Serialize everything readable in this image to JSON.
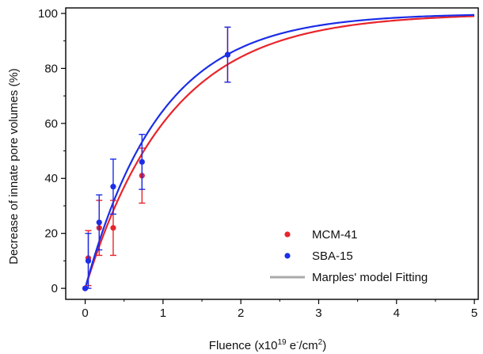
{
  "chart_data": {
    "type": "scatter",
    "xlabel": {
      "prefix": "Fluence (x10",
      "exp": "19",
      "mid": " e",
      "sup2": "-",
      "mid2": "/cm",
      "sup3": "2",
      "suffix": ")"
    },
    "ylabel": "Decrease of innate pore volumes (%)",
    "xlim": [
      -0.25,
      5.05
    ],
    "ylim": [
      -4,
      102
    ],
    "xticks": [
      0,
      1,
      2,
      3,
      4,
      5
    ],
    "yticks": [
      0,
      20,
      40,
      60,
      80,
      100
    ],
    "legend": {
      "position": "bottom-right"
    },
    "series": [
      {
        "name": "MCM-41",
        "kind": "points",
        "color": "#e8242b",
        "points": [
          {
            "x": 0.0,
            "y": 0,
            "err": 0
          },
          {
            "x": 0.04,
            "y": 11,
            "err": 10
          },
          {
            "x": 0.18,
            "y": 22,
            "err": 10
          },
          {
            "x": 0.36,
            "y": 22,
            "err": 10
          },
          {
            "x": 0.73,
            "y": 41,
            "err": 10
          },
          {
            "x": 1.83,
            "y": 85,
            "err": 10
          }
        ]
      },
      {
        "name": "SBA-15",
        "kind": "points",
        "color": "#1b2ee8",
        "points": [
          {
            "x": 0.0,
            "y": 0,
            "err": 0
          },
          {
            "x": 0.04,
            "y": 10,
            "err": 10
          },
          {
            "x": 0.18,
            "y": 24,
            "err": 10
          },
          {
            "x": 0.36,
            "y": 37,
            "err": 10
          },
          {
            "x": 0.73,
            "y": 46,
            "err": 10
          },
          {
            "x": 1.83,
            "y": 85,
            "err": 10
          }
        ]
      },
      {
        "name": "Marples' model Fitting",
        "kind": "legend-line",
        "color": "#aaaaaa"
      }
    ],
    "fits": [
      {
        "color": "#e8242b",
        "k": 0.92
      },
      {
        "color": "#1b2ee8",
        "k": 1.04
      }
    ]
  }
}
